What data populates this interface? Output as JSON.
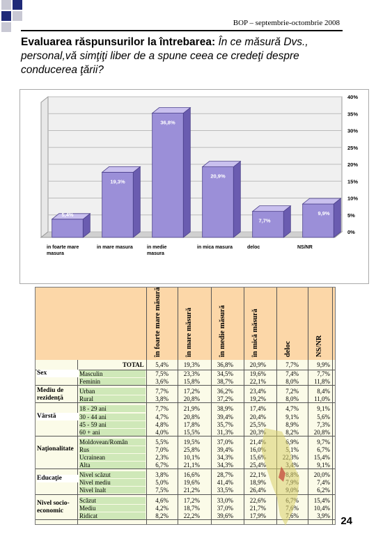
{
  "header": {
    "text": "BOP – septembrie-octombrie 2008"
  },
  "title": {
    "bold": "Evaluarea răspunsurilor la întrebarea:",
    "italic": "În ce măsură Dvs., personal,vă simţiţi liber de a spune ceea ce credeţi despre conducerea ţării?"
  },
  "chart_data": {
    "type": "bar",
    "categories": [
      "in foarte mare masura",
      "in mare masura",
      "in medie masura",
      "in mica masura",
      "deloc",
      "NS/NR"
    ],
    "values": [
      5.4,
      19.3,
      36.8,
      20.9,
      7.7,
      9.9
    ],
    "value_labels": [
      "5,4%",
      "19,3%",
      "36,8%",
      "20,9%",
      "7,7%",
      "9,9%"
    ],
    "ylim": [
      0,
      40
    ],
    "yticks": [
      "0%",
      "5%",
      "10%",
      "15%",
      "20%",
      "25%",
      "30%",
      "35%",
      "40%"
    ],
    "colors": {
      "front": "#9b8fd8",
      "side": "#6a5cb0",
      "top": "#c9c0ee"
    }
  },
  "table": {
    "columns": [
      "în foarte mare măsură",
      "în mare măsură",
      "în medie măsură",
      "în mică măsură",
      "deloc",
      "NS/NR"
    ],
    "total_label": "TOTAL",
    "total": [
      "5,4%",
      "19,3%",
      "36,8%",
      "20,9%",
      "7,7%",
      "9,9%"
    ],
    "groups": [
      {
        "name": "Sex",
        "rows": [
          {
            "label": "Masculin",
            "values": [
              "7,5%",
              "23,3%",
              "34,5%",
              "19,6%",
              "7,4%",
              "7,7%"
            ]
          },
          {
            "label": "Feminin",
            "values": [
              "3,6%",
              "15,8%",
              "38,7%",
              "22,1%",
              "8,0%",
              "11,8%"
            ]
          }
        ]
      },
      {
        "name": "Mediu de rezidenţă",
        "rows": [
          {
            "label": "Urban",
            "values": [
              "7,7%",
              "17,2%",
              "36,2%",
              "23,4%",
              "7,2%",
              "8,4%"
            ]
          },
          {
            "label": "Rural",
            "values": [
              "3,8%",
              "20,8%",
              "37,2%",
              "19,2%",
              "8,0%",
              "11,0%"
            ]
          }
        ]
      },
      {
        "name": "Vârstă",
        "rows": [
          {
            "label": "18 - 29 ani",
            "values": [
              "7,7%",
              "21,9%",
              "38,9%",
              "17,4%",
              "4,7%",
              "9,1%"
            ]
          },
          {
            "label": "30 - 44 ani",
            "values": [
              "4,7%",
              "20,8%",
              "39,4%",
              "20,4%",
              "9,1%",
              "5,6%"
            ]
          },
          {
            "label": "45 - 59 ani",
            "values": [
              "4,8%",
              "17,8%",
              "35,7%",
              "25,5%",
              "8,9%",
              "7,3%"
            ]
          },
          {
            "label": "60 + ani",
            "values": [
              "4,0%",
              "15,5%",
              "31,3%",
              "20,3%",
              "8,2%",
              "20,8%"
            ]
          }
        ]
      },
      {
        "name": "Naţionalitate",
        "rows": [
          {
            "label": "Moldovean/Român",
            "values": [
              "5,5%",
              "19,5%",
              "37,0%",
              "21,4%",
              "6,9%",
              "9,7%"
            ]
          },
          {
            "label": "Rus",
            "values": [
              "7,0%",
              "25,8%",
              "39,4%",
              "16,0%",
              "5,1%",
              "6,7%"
            ]
          },
          {
            "label": "Ucrainean",
            "values": [
              "2,3%",
              "10,1%",
              "34,3%",
              "15,6%",
              "22,3%",
              "15,4%"
            ]
          },
          {
            "label": "Alta",
            "values": [
              "6,7%",
              "21,1%",
              "34,3%",
              "25,4%",
              "3,4%",
              "9,1%"
            ]
          }
        ]
      },
      {
        "name": "Educaţie",
        "rows": [
          {
            "label": "Nivel scăzut",
            "values": [
              "3,8%",
              "16,6%",
              "28,7%",
              "22,1%",
              "8,8%",
              "20,0%"
            ]
          },
          {
            "label": "Nivel mediu",
            "values": [
              "5,0%",
              "19,6%",
              "41,4%",
              "18,9%",
              "7,9%",
              "7,4%"
            ]
          },
          {
            "label": "Nivel înalt",
            "values": [
              "7,5%",
              "21,2%",
              "33,5%",
              "26,4%",
              "9,0%",
              "6,2%"
            ]
          }
        ]
      },
      {
        "name": "Nivel socio-economic",
        "rows": [
          {
            "label": "Scăzut",
            "values": [
              "4,6%",
              "17,2%",
              "33,0%",
              "22,6%",
              "6,7%",
              "15,4%"
            ]
          },
          {
            "label": "Mediu",
            "values": [
              "4,2%",
              "18,7%",
              "37,0%",
              "21,7%",
              "7,6%",
              "10,4%"
            ]
          },
          {
            "label": "Ridicat",
            "values": [
              "8,2%",
              "22,2%",
              "39,6%",
              "17,9%",
              "7,6%",
              "3,9%"
            ]
          }
        ]
      }
    ]
  },
  "page_number": "24",
  "colors": {
    "square_blue": "#1f2a78",
    "square_gray": "#c8c8d4",
    "header_band": "#fcd7a8",
    "label_green": "#cfe8b8",
    "table_bg": "#fbfbe8"
  }
}
